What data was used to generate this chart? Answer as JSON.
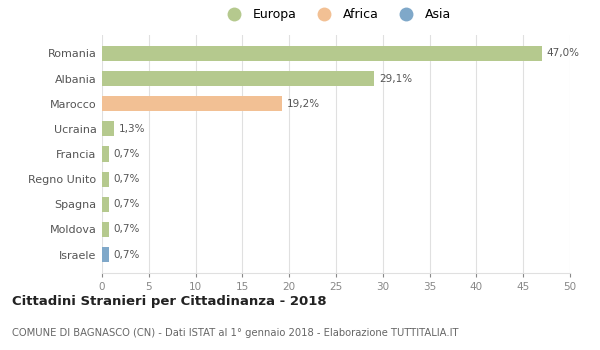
{
  "categories": [
    "Romania",
    "Albania",
    "Marocco",
    "Ucraina",
    "Francia",
    "Regno Unito",
    "Spagna",
    "Moldova",
    "Israele"
  ],
  "values": [
    47.0,
    29.1,
    19.2,
    1.3,
    0.7,
    0.7,
    0.7,
    0.7,
    0.7
  ],
  "labels": [
    "47,0%",
    "29,1%",
    "19,2%",
    "1,3%",
    "0,7%",
    "0,7%",
    "0,7%",
    "0,7%",
    "0,7%"
  ],
  "colors": [
    "#b5c98e",
    "#b5c98e",
    "#f2c094",
    "#b5c98e",
    "#b5c98e",
    "#b5c98e",
    "#b5c98e",
    "#b5c98e",
    "#7fa8c9"
  ],
  "legend_labels": [
    "Europa",
    "Africa",
    "Asia"
  ],
  "legend_colors": [
    "#b5c98e",
    "#f2c094",
    "#7fa8c9"
  ],
  "xlim": [
    0,
    50
  ],
  "xticks": [
    0,
    5,
    10,
    15,
    20,
    25,
    30,
    35,
    40,
    45,
    50
  ],
  "title": "Cittadini Stranieri per Cittadinanza - 2018",
  "subtitle": "COMUNE DI BAGNASCO (CN) - Dati ISTAT al 1° gennaio 2018 - Elaborazione TUTTITALIA.IT",
  "bg_color": "#ffffff",
  "grid_color": "#e0e0e0",
  "bar_height": 0.6
}
